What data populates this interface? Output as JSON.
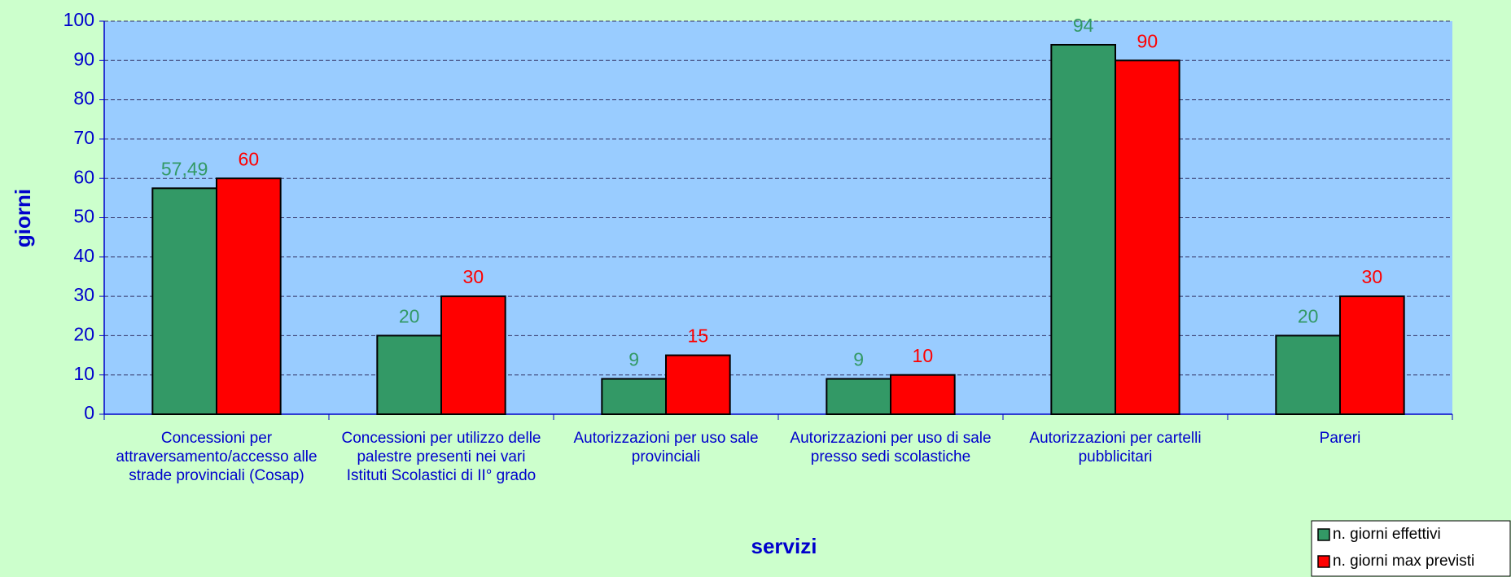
{
  "chart_data": {
    "type": "bar",
    "categories": [
      "Concessioni per attraversamento/accesso alle strade provinciali (Cosap)",
      "Concessioni per utilizzo delle palestre presenti nei vari Istituti Scolastici di II° grado",
      "Autorizzazioni per uso sale provinciali",
      "Autorizzazioni per uso di sale presso sedi scolastiche",
      "Autorizzazioni per cartelli pubblicitari",
      "Pareri"
    ],
    "series": [
      {
        "name": "n. giorni effettivi",
        "color": "#339966",
        "values": [
          57.49,
          20,
          9,
          9,
          94,
          20
        ],
        "value_labels": [
          "57,49",
          "20",
          "9",
          "9",
          "94",
          "20"
        ]
      },
      {
        "name": "n. giorni max previsti",
        "color": "#ff0000",
        "values": [
          60,
          30,
          15,
          10,
          90,
          30
        ]
      }
    ],
    "x_label": "servizi",
    "y_label": "giorni",
    "ylim": [
      0,
      100
    ],
    "yticks": [
      0,
      10,
      20,
      30,
      40,
      50,
      60,
      70,
      80,
      90,
      100
    ],
    "grid": true,
    "legend": "bottom-right"
  }
}
